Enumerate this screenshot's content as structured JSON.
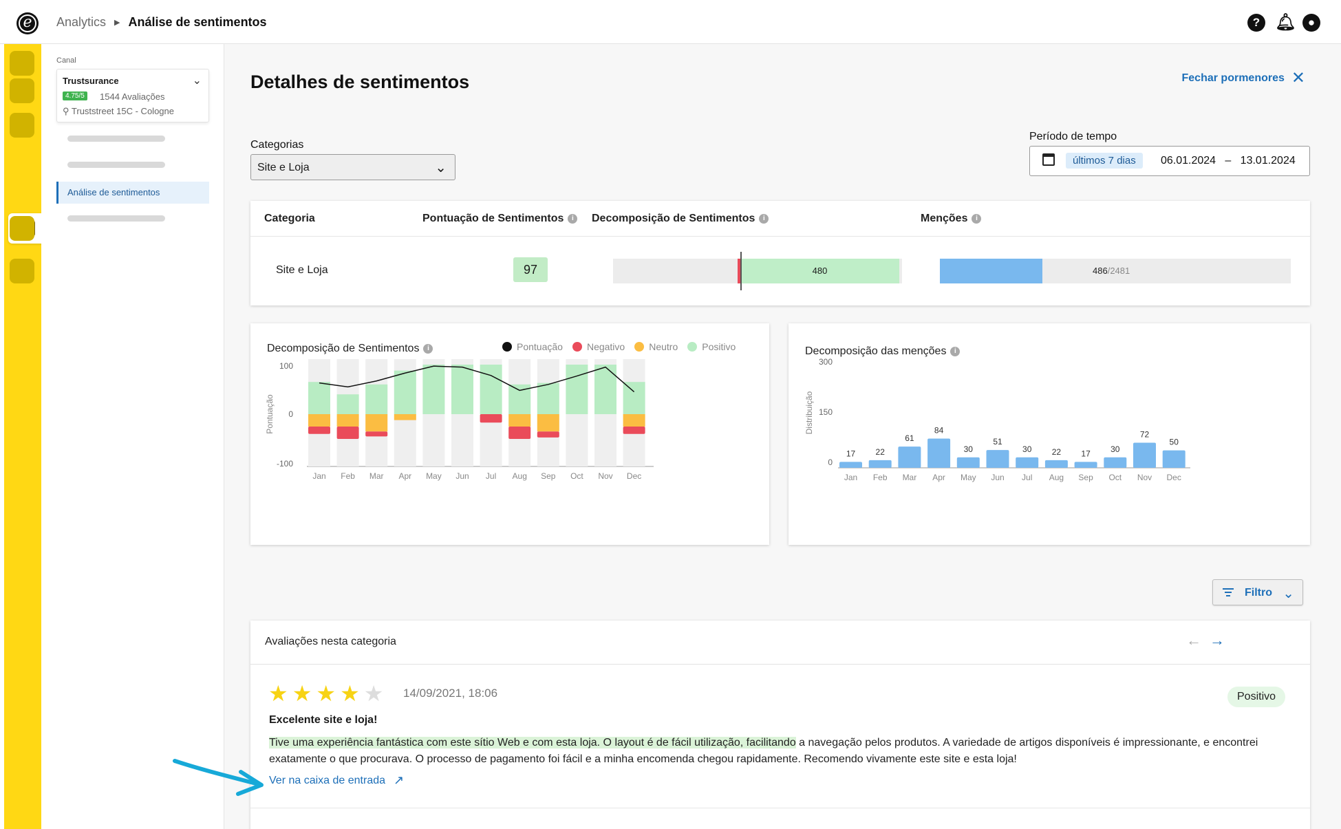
{
  "app": {
    "logo": "e"
  },
  "breadcrumb": {
    "parent": "Analytics",
    "current": "Análise de sentimentos"
  },
  "top_icons": [
    "help-icon",
    "bell-icon",
    "user-icon"
  ],
  "sidebar": {
    "canal_label": "Canal",
    "channel": {
      "name": "Trustsurance",
      "rating": "4.75/5",
      "reviews": "1544 Avaliações",
      "address": "Truststreet 15C - Cologne"
    },
    "active_item": "Análise de sentimentos"
  },
  "main": {
    "title": "Detalhes de sentimentos",
    "close_label": "Fechar pormenores",
    "categories_label": "Categorias",
    "category_selected": "Site e Loja",
    "period_label": "Período de tempo",
    "period_chip": "últimos 7 dias",
    "date_from": "06.01.2024",
    "date_sep": "–",
    "date_to": "13.01.2024"
  },
  "summary": {
    "headers": {
      "category": "Categoria",
      "score": "Pontuação de Sentimentos",
      "decomposition": "Decomposição de Sentimentos",
      "mentions": "Menções"
    },
    "row": {
      "category": "Site e Loja",
      "score": "97",
      "positive_count": "480",
      "mentions": "486",
      "mentions_total": "/2481"
    }
  },
  "colors": {
    "accent": "#1d6fb8",
    "rail": "#ffd814",
    "positive": "#b8ecc3",
    "neutral": "#fbbd42",
    "negative": "#ea4b5a",
    "bars": "#79b8ee"
  },
  "chart_data": [
    {
      "type": "bar",
      "title": "Decomposição de Sentimentos",
      "ylabel": "Pontuação",
      "yticks": [
        "100",
        "0",
        "-100"
      ],
      "ylim": [
        -100,
        100
      ],
      "categories": [
        "Jan",
        "Feb",
        "Mar",
        "Apr",
        "May",
        "Jun",
        "Jul",
        "Aug",
        "Sep",
        "Oct",
        "Nov",
        "Dec"
      ],
      "legend": [
        "Pontuação",
        "Negativo",
        "Neutro",
        "Positivo"
      ],
      "series": [
        {
          "name": "Positivo",
          "values": [
            65,
            40,
            60,
            88,
            100,
            100,
            100,
            60,
            63,
            100,
            100,
            65
          ]
        },
        {
          "name": "Neutro",
          "values": [
            25,
            25,
            35,
            12,
            0,
            0,
            0,
            25,
            35,
            0,
            0,
            25
          ]
        },
        {
          "name": "Negativo",
          "values": [
            15,
            25,
            10,
            0,
            0,
            0,
            17,
            25,
            12,
            0,
            0,
            15
          ]
        },
        {
          "name": "Pontuação",
          "values": [
            63,
            55,
            67,
            83,
            97,
            95,
            78,
            48,
            60,
            77,
            95,
            45
          ]
        }
      ]
    },
    {
      "type": "bar",
      "title": "Decomposição das menções",
      "ylabel": "Distribuição",
      "yticks": [
        "300",
        "150",
        "0"
      ],
      "ylim": [
        0,
        300
      ],
      "categories": [
        "Jan",
        "Feb",
        "Mar",
        "Apr",
        "May",
        "Jun",
        "Jul",
        "Aug",
        "Sep",
        "Oct",
        "Nov",
        "Dec"
      ],
      "values": [
        17,
        22,
        61,
        84,
        30,
        51,
        30,
        22,
        17,
        30,
        72,
        50
      ],
      "labels": [
        "17",
        "22",
        "61",
        "84",
        "30",
        "51",
        "30",
        "22",
        "17",
        "30",
        "72",
        "50"
      ]
    }
  ],
  "filter": {
    "label": "Filtro"
  },
  "reviews": {
    "header": "Avaliações nesta categoria",
    "item": {
      "stars": 4,
      "max_stars": 5,
      "date": "14/09/2021, 18:06",
      "badge": "Positivo",
      "title": "Excelente site e loja!",
      "body_highlight": "Tive uma experiência fantástica com este sítio Web e com esta loja. O layout é de fácil utilização, facilitando",
      "body_rest": " a navegação pelos produtos. A variedade de artigos disponíveis é impressionante, e encontrei exatamente o que procurava. O processo de pagamento foi fácil e a minha encomenda chegou rapidamente. Recomendo vivamente este site e esta loja!",
      "link": "Ver na caixa de entrada"
    }
  }
}
